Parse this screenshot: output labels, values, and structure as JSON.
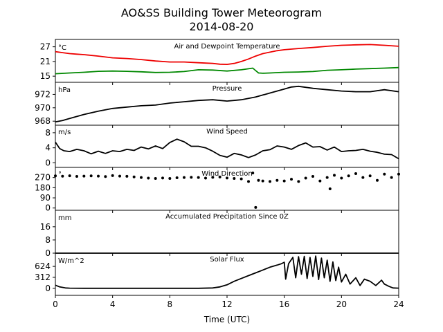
{
  "figure": {
    "title": "AO&SS Building Tower Meteorogram",
    "subtitle": "2014-08-20",
    "xlabel": "Time (UTC)",
    "xticks": [
      0,
      4,
      8,
      12,
      16,
      20,
      24
    ],
    "xlim": [
      0,
      24
    ],
    "colors": {
      "temperature": "#ee0000",
      "dewpoint": "#008800",
      "default": "#000000"
    }
  },
  "chart_data": [
    {
      "type": "line",
      "title": "Air and Dewpoint Temperature",
      "ylabel": "°C",
      "ylim": [
        12.5,
        30
      ],
      "yticks": [
        15,
        21,
        27
      ],
      "series": [
        {
          "key": "temperature",
          "color": "#ee0000",
          "x": [
            0,
            0.5,
            1,
            1.5,
            2,
            3,
            4,
            5,
            6,
            7,
            8,
            9,
            10,
            11,
            11.5,
            12,
            12.5,
            13,
            13.5,
            14,
            14.5,
            15,
            15.5,
            16,
            17,
            18,
            19,
            20,
            21,
            22,
            23,
            24
          ],
          "y": [
            25,
            24.6,
            24.2,
            24,
            23.8,
            23.2,
            22.5,
            22.2,
            21.8,
            21.2,
            20.8,
            20.8,
            20.5,
            20.2,
            19.9,
            19.8,
            20.2,
            21,
            22,
            23.2,
            24.2,
            24.8,
            25.4,
            25.8,
            26.3,
            26.7,
            27.2,
            27.6,
            27.8,
            27.9,
            27.6,
            27.2
          ]
        },
        {
          "key": "dewpoint",
          "color": "#008800",
          "x": [
            0,
            1,
            2,
            3,
            4,
            5,
            6,
            7,
            8,
            9,
            10,
            11,
            12,
            13,
            13.8,
            14,
            14.2,
            14.5,
            15,
            16,
            17,
            18,
            19,
            20,
            21,
            22,
            23,
            24
          ],
          "y": [
            16,
            16.3,
            16.6,
            17,
            17.1,
            17,
            16.8,
            16.5,
            16.6,
            16.9,
            17.6,
            17.5,
            17.1,
            17.6,
            18.3,
            17.3,
            16.3,
            16.2,
            16.3,
            16.6,
            16.7,
            16.9,
            17.4,
            17.6,
            17.9,
            18.1,
            18.3,
            18.5
          ]
        }
      ]
    },
    {
      "type": "line",
      "title": "Pressure",
      "ylabel": "hPa",
      "ylim": [
        967.4,
        973.8
      ],
      "yticks": [
        968,
        970,
        972
      ],
      "series": [
        {
          "key": "default",
          "color": "#000000",
          "x": [
            0,
            0.5,
            1,
            2,
            3,
            4,
            5,
            6,
            7,
            8,
            9,
            10,
            11,
            12,
            13,
            14,
            15,
            16,
            16.5,
            17,
            18,
            19,
            20,
            21,
            22,
            23,
            24
          ],
          "y": [
            967.9,
            968.1,
            968.4,
            969,
            969.5,
            969.9,
            970.1,
            970.3,
            970.4,
            970.7,
            970.9,
            971.1,
            971.2,
            971,
            971.2,
            971.6,
            972.2,
            972.8,
            973.1,
            973.2,
            972.9,
            972.7,
            972.5,
            972.4,
            972.4,
            972.7,
            972.4
          ]
        }
      ]
    },
    {
      "type": "line",
      "title": "Wind Speed",
      "ylabel": "m/s",
      "ylim": [
        -1.2,
        10
      ],
      "yticks": [
        0,
        4,
        8
      ],
      "series": [
        {
          "key": "default",
          "color": "#000000",
          "x": [
            0,
            0.3,
            0.6,
            1,
            1.5,
            2,
            2.5,
            3,
            3.5,
            4,
            4.5,
            5,
            5.5,
            6,
            6.5,
            7,
            7.5,
            8,
            8.5,
            9,
            9.5,
            10,
            10.5,
            11,
            11.5,
            12,
            12.5,
            13,
            13.5,
            14,
            14.5,
            15,
            15.5,
            16,
            16.5,
            17,
            17.5,
            18,
            18.5,
            19,
            19.5,
            20,
            20.5,
            21,
            21.5,
            22,
            22.5,
            23,
            23.5,
            24
          ],
          "y": [
            5.5,
            3.8,
            3.2,
            3,
            3.6,
            3.2,
            2.4,
            3.1,
            2.5,
            3.2,
            3,
            3.6,
            3.3,
            4.2,
            3.7,
            4.5,
            3.8,
            5.4,
            6.3,
            5.6,
            4.4,
            4.4,
            4.0,
            3.1,
            2.0,
            1.5,
            2.5,
            2.1,
            1.4,
            2.1,
            3.2,
            3.5,
            4.5,
            4.2,
            3.6,
            4.6,
            5.3,
            4.2,
            4.3,
            3.4,
            4.2,
            3.0,
            3.2,
            3.3,
            3.6,
            3.1,
            2.8,
            2.3,
            2.2,
            1.1
          ]
        }
      ]
    },
    {
      "type": "scatter",
      "title": "Wind Direction",
      "ylabel": "°",
      "ylim": [
        -20,
        360
      ],
      "yticks": [
        0,
        90,
        180,
        270
      ],
      "series": [
        {
          "key": "default",
          "color": "#000000",
          "x": [
            0,
            0.5,
            1,
            1.5,
            2,
            2.5,
            3,
            3.5,
            4,
            4.5,
            5,
            5.5,
            6,
            6.5,
            7,
            7.5,
            8,
            8.5,
            9,
            9.5,
            10,
            10.5,
            11,
            11.5,
            12,
            12.5,
            13,
            13.5,
            13.8,
            14,
            14.2,
            14.5,
            15,
            15.5,
            16,
            16.5,
            17,
            17.5,
            18,
            18.5,
            19,
            19.2,
            19.5,
            20,
            20.5,
            21,
            21.5,
            22,
            22.5,
            23,
            23.5,
            24
          ],
          "y": [
            285,
            282,
            286,
            280,
            283,
            285,
            283,
            279,
            287,
            283,
            281,
            276,
            270,
            265,
            262,
            266,
            262,
            268,
            270,
            272,
            270,
            265,
            272,
            275,
            266,
            262,
            258,
            235,
            310,
            5,
            245,
            240,
            235,
            245,
            240,
            255,
            235,
            265,
            280,
            240,
            270,
            170,
            290,
            265,
            285,
            305,
            270,
            285,
            245,
            300,
            270,
            300
          ]
        }
      ]
    },
    {
      "type": "line",
      "title": "Accumulated Precipitation Since 0Z",
      "ylabel": "mm",
      "ylim": [
        0,
        26
      ],
      "yticks": [
        0,
        8,
        16
      ],
      "series": [
        {
          "key": "default",
          "color": "#000000",
          "x": [
            0,
            24
          ],
          "y": [
            0,
            0
          ]
        }
      ]
    },
    {
      "type": "line",
      "title": "Solar Flux",
      "ylabel": "W/m^2",
      "ylim": [
        -200,
        1000
      ],
      "yticks": [
        0,
        312,
        624
      ],
      "series": [
        {
          "key": "default",
          "color": "#000000",
          "x": [
            0,
            0.3,
            0.7,
            1,
            2,
            4,
            6,
            8,
            10,
            11,
            11.5,
            12,
            12.5,
            13,
            13.5,
            14,
            14.5,
            15,
            15.5,
            15.8,
            16,
            16.1,
            16.3,
            16.6,
            16.8,
            17,
            17.2,
            17.4,
            17.6,
            17.8,
            18,
            18.2,
            18.4,
            18.6,
            18.8,
            19,
            19.2,
            19.4,
            19.6,
            19.8,
            20,
            20.3,
            20.6,
            21,
            21.3,
            21.6,
            22,
            22.4,
            22.8,
            23,
            23.3,
            23.6,
            24
          ],
          "y": [
            90,
            40,
            10,
            5,
            0,
            0,
            0,
            0,
            0,
            10,
            40,
            100,
            200,
            280,
            360,
            440,
            520,
            600,
            660,
            700,
            740,
            260,
            700,
            880,
            300,
            900,
            400,
            910,
            280,
            880,
            340,
            920,
            250,
            860,
            300,
            800,
            200,
            750,
            220,
            600,
            180,
            400,
            120,
            300,
            80,
            260,
            200,
            80,
            230,
            120,
            60,
            10,
            5
          ]
        }
      ]
    }
  ]
}
